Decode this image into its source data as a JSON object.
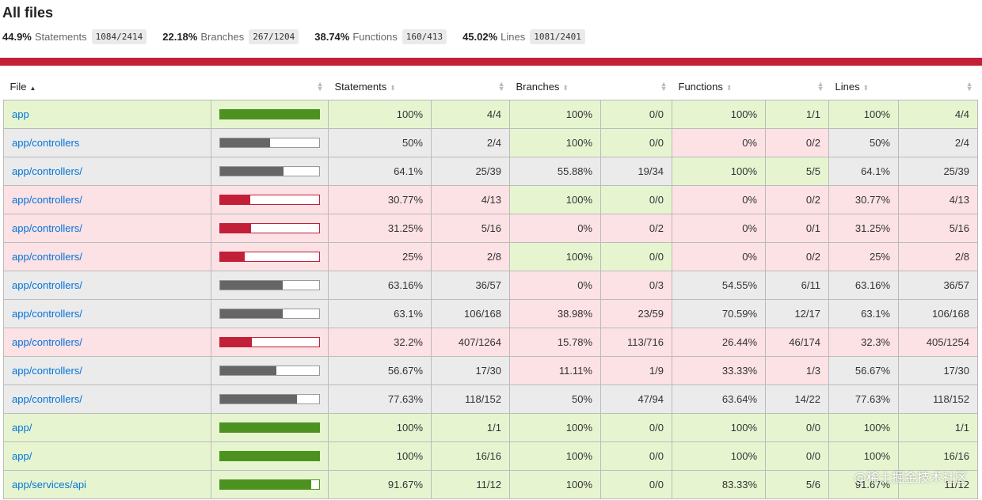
{
  "title": "All files",
  "summary": [
    {
      "pct": "44.9%",
      "label": "Statements",
      "fraction": "1084/2414"
    },
    {
      "pct": "22.18%",
      "label": "Branches",
      "fraction": "267/1204"
    },
    {
      "pct": "38.74%",
      "label": "Functions",
      "fraction": "160/413"
    },
    {
      "pct": "45.02%",
      "label": "Lines",
      "fraction": "1081/2401"
    }
  ],
  "headers": {
    "file": "File",
    "statements": "Statements",
    "branches": "Branches",
    "functions": "Functions",
    "lines": "Lines"
  },
  "colors": {
    "high": "#e6f5d0",
    "medium": "#ebebeb",
    "low": "#fce1e5",
    "high_fill": "#4d9221",
    "medium_fill": "#666666",
    "low_fill": "#c21f39",
    "link": "#0074d9",
    "redbar": "#c21f39"
  },
  "rows": [
    {
      "file": "app",
      "pct": 1.0,
      "level": "high",
      "stmt_pct": "100%",
      "stmt": "4/4",
      "br_pct": "100%",
      "br": "0/0",
      "br_level": "high",
      "fn_pct": "100%",
      "fn": "1/1",
      "fn_level": "high",
      "ln_pct": "100%",
      "ln": "4/4"
    },
    {
      "file": "app/controllers",
      "pct": 0.5,
      "level": "medium",
      "stmt_pct": "50%",
      "stmt": "2/4",
      "br_pct": "100%",
      "br": "0/0",
      "br_level": "high",
      "fn_pct": "0%",
      "fn": "0/2",
      "fn_level": "low",
      "ln_pct": "50%",
      "ln": "2/4"
    },
    {
      "file": "app/controllers/",
      "pct": 0.641,
      "level": "medium",
      "stmt_pct": "64.1%",
      "stmt": "25/39",
      "br_pct": "55.88%",
      "br": "19/34",
      "br_level": "medium",
      "fn_pct": "100%",
      "fn": "5/5",
      "fn_level": "high",
      "ln_pct": "64.1%",
      "ln": "25/39"
    },
    {
      "file": "app/controllers/",
      "pct": 0.3077,
      "level": "low",
      "stmt_pct": "30.77%",
      "stmt": "4/13",
      "br_pct": "100%",
      "br": "0/0",
      "br_level": "high",
      "fn_pct": "0%",
      "fn": "0/2",
      "fn_level": "low",
      "ln_pct": "30.77%",
      "ln": "4/13"
    },
    {
      "file": "app/controllers/",
      "pct": 0.3125,
      "level": "low",
      "stmt_pct": "31.25%",
      "stmt": "5/16",
      "br_pct": "0%",
      "br": "0/2",
      "br_level": "low",
      "fn_pct": "0%",
      "fn": "0/1",
      "fn_level": "low",
      "ln_pct": "31.25%",
      "ln": "5/16"
    },
    {
      "file": "app/controllers/",
      "pct": 0.25,
      "level": "low",
      "stmt_pct": "25%",
      "stmt": "2/8",
      "br_pct": "100%",
      "br": "0/0",
      "br_level": "high",
      "fn_pct": "0%",
      "fn": "0/2",
      "fn_level": "low",
      "ln_pct": "25%",
      "ln": "2/8"
    },
    {
      "file": "app/controllers/",
      "pct": 0.6316,
      "level": "medium",
      "stmt_pct": "63.16%",
      "stmt": "36/57",
      "br_pct": "0%",
      "br": "0/3",
      "br_level": "low",
      "fn_pct": "54.55%",
      "fn": "6/11",
      "fn_level": "medium",
      "ln_pct": "63.16%",
      "ln": "36/57"
    },
    {
      "file": "app/controllers/",
      "pct": 0.631,
      "level": "medium",
      "stmt_pct": "63.1%",
      "stmt": "106/168",
      "br_pct": "38.98%",
      "br": "23/59",
      "br_level": "low",
      "fn_pct": "70.59%",
      "fn": "12/17",
      "fn_level": "medium",
      "ln_pct": "63.1%",
      "ln": "106/168"
    },
    {
      "file": "app/controllers/",
      "pct": 0.322,
      "level": "low",
      "stmt_pct": "32.2%",
      "stmt": "407/1264",
      "br_pct": "15.78%",
      "br": "113/716",
      "br_level": "low",
      "fn_pct": "26.44%",
      "fn": "46/174",
      "fn_level": "low",
      "ln_pct": "32.3%",
      "ln": "405/1254"
    },
    {
      "file": "app/controllers/",
      "pct": 0.5667,
      "level": "medium",
      "stmt_pct": "56.67%",
      "stmt": "17/30",
      "br_pct": "11.11%",
      "br": "1/9",
      "br_level": "low",
      "fn_pct": "33.33%",
      "fn": "1/3",
      "fn_level": "low",
      "ln_pct": "56.67%",
      "ln": "17/30"
    },
    {
      "file": "app/controllers/",
      "pct": 0.7763,
      "level": "medium",
      "stmt_pct": "77.63%",
      "stmt": "118/152",
      "br_pct": "50%",
      "br": "47/94",
      "br_level": "medium",
      "fn_pct": "63.64%",
      "fn": "14/22",
      "fn_level": "medium",
      "ln_pct": "77.63%",
      "ln": "118/152"
    },
    {
      "file": "app/",
      "pct": 1.0,
      "level": "high",
      "stmt_pct": "100%",
      "stmt": "1/1",
      "br_pct": "100%",
      "br": "0/0",
      "br_level": "high",
      "fn_pct": "100%",
      "fn": "0/0",
      "fn_level": "high",
      "ln_pct": "100%",
      "ln": "1/1"
    },
    {
      "file": "app/",
      "pct": 1.0,
      "level": "high",
      "stmt_pct": "100%",
      "stmt": "16/16",
      "br_pct": "100%",
      "br": "0/0",
      "br_level": "high",
      "fn_pct": "100%",
      "fn": "0/0",
      "fn_level": "high",
      "ln_pct": "100%",
      "ln": "16/16"
    },
    {
      "file": "app/services/api",
      "pct": 0.9167,
      "level": "high",
      "stmt_pct": "91.67%",
      "stmt": "11/12",
      "br_pct": "100%",
      "br": "0/0",
      "br_level": "high",
      "fn_pct": "83.33%",
      "fn": "5/6",
      "fn_level": "high",
      "ln_pct": "91.67%",
      "ln": "11/12"
    }
  ],
  "watermark": "@稀土掘金技术社区"
}
